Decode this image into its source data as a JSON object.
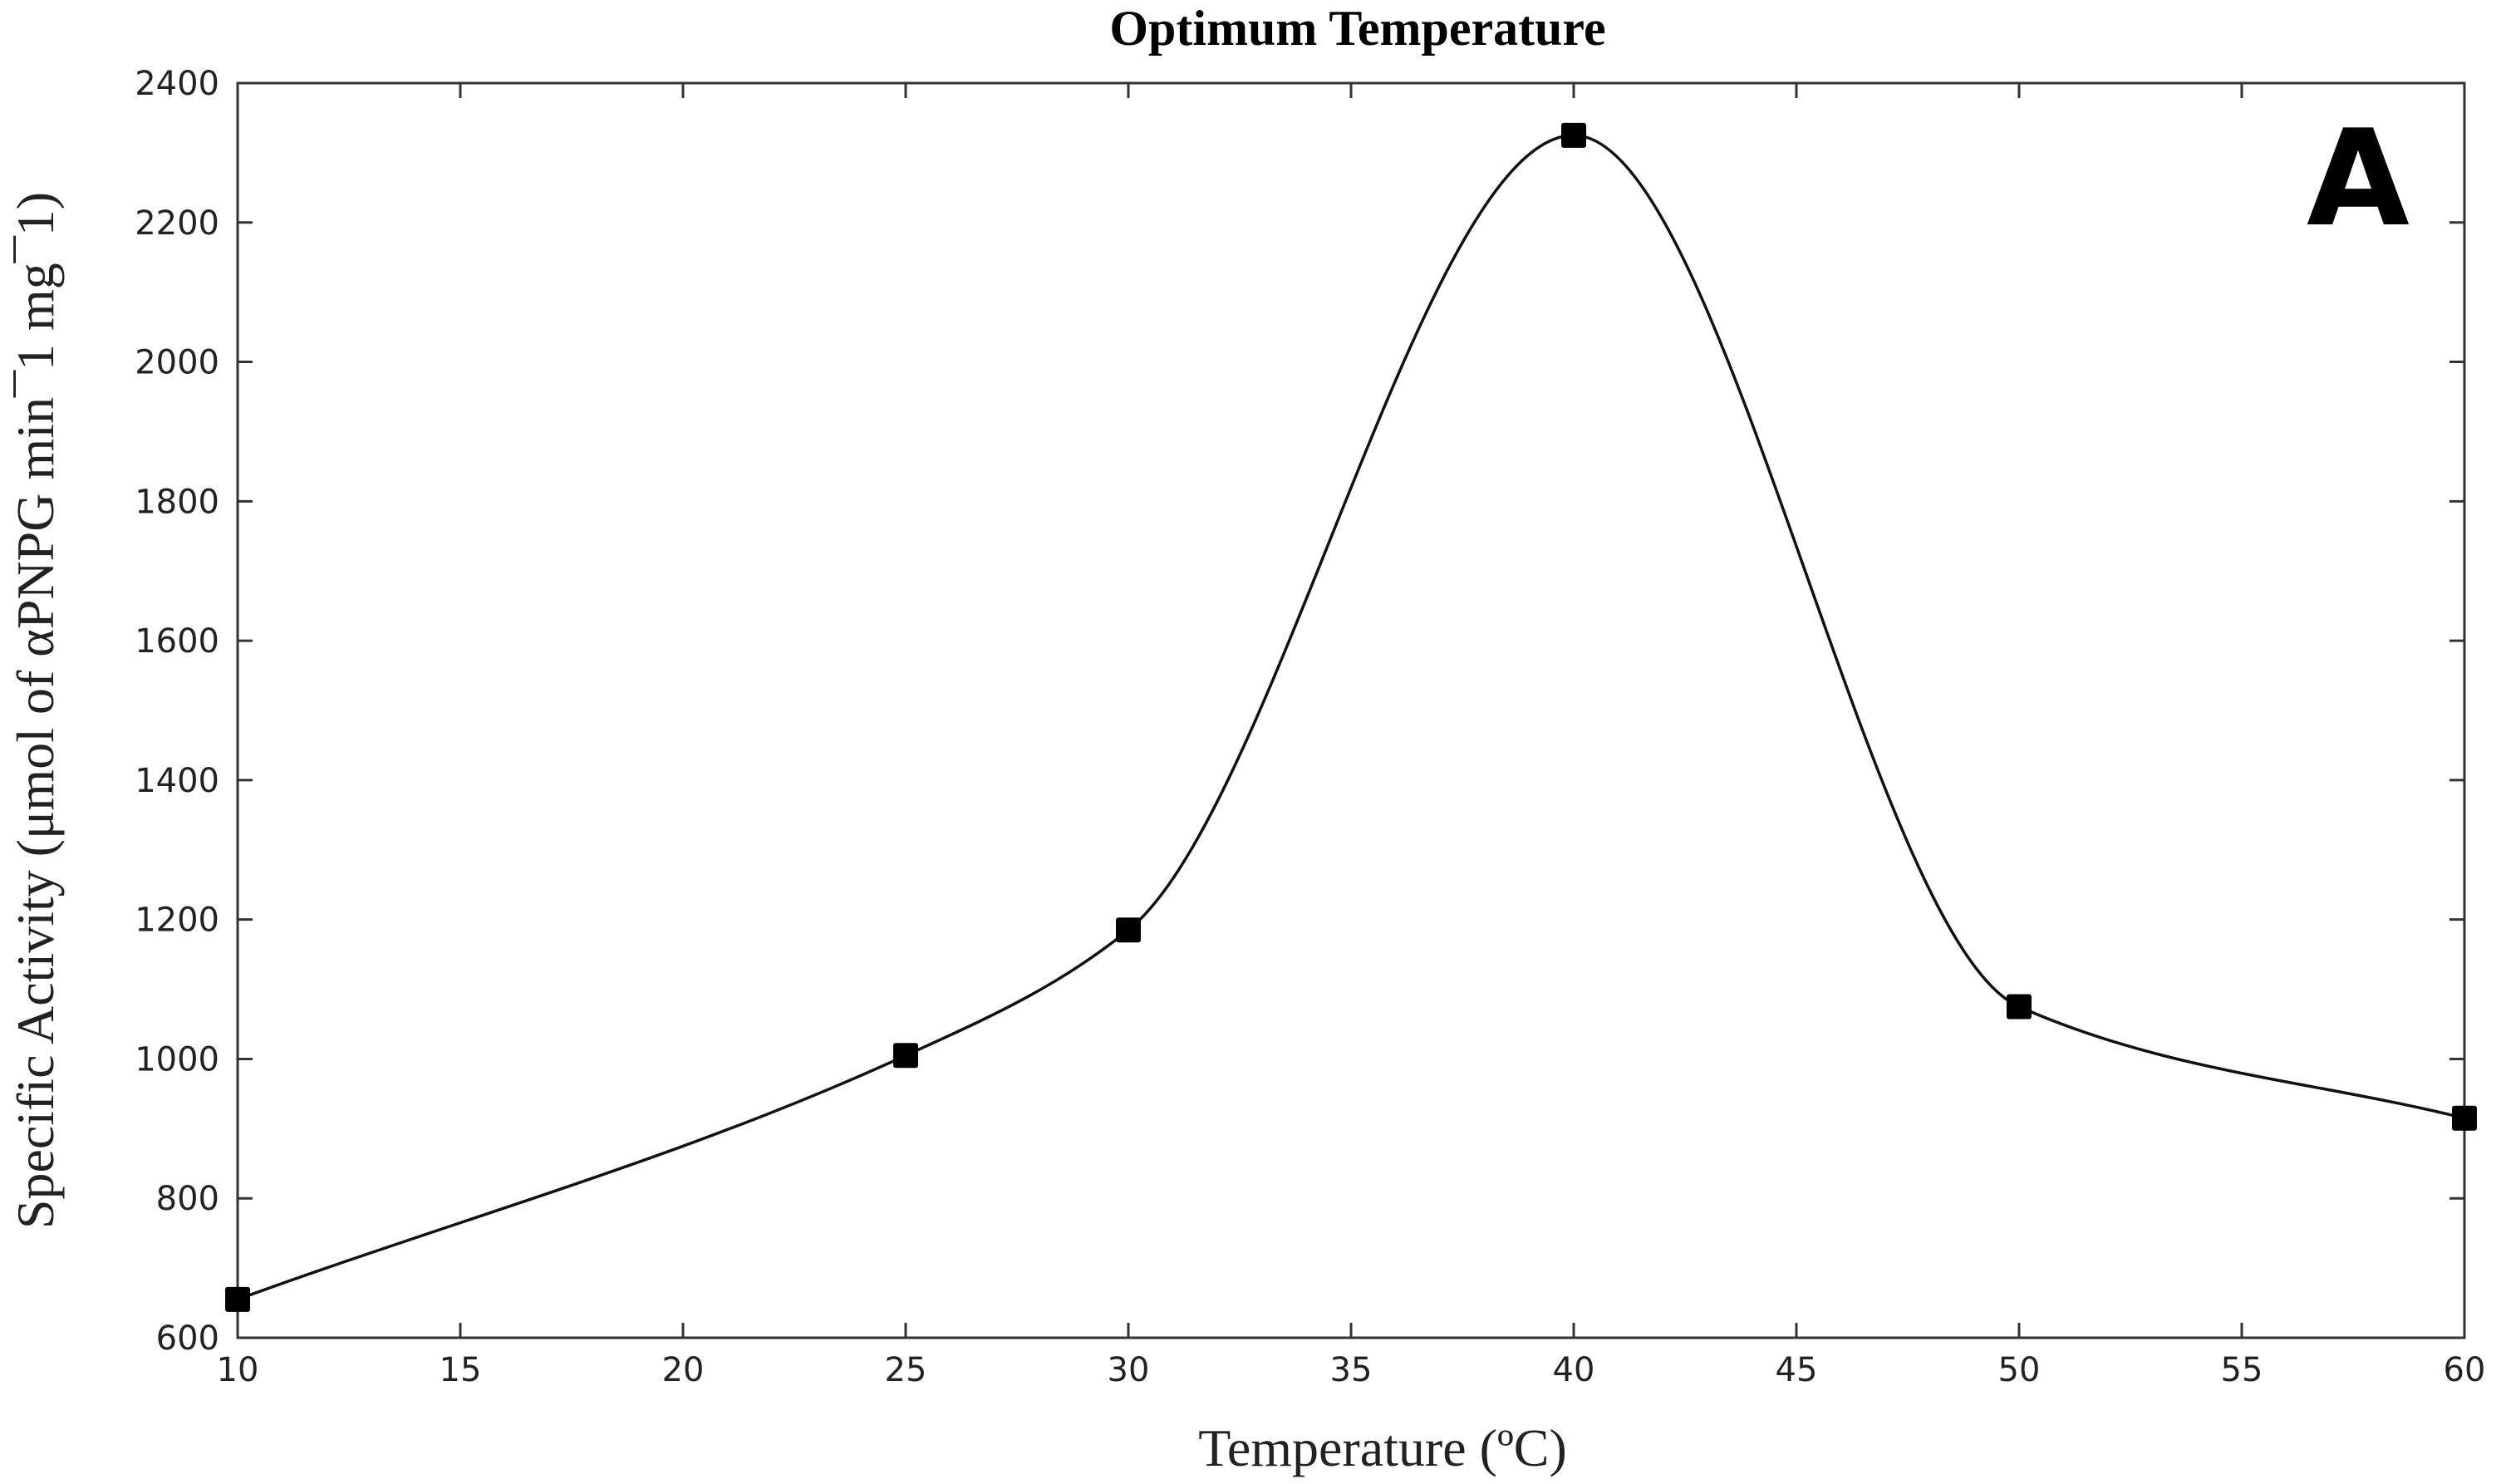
{
  "chart_data": {
    "type": "line",
    "title": "Optimum Temperature",
    "xlabel": "Temperature (ºC)",
    "ylabel": "Specific Activity (μmol of αPNPG min¯1 mg¯1)",
    "panel_label": "A",
    "xlim": [
      10,
      60
    ],
    "ylim": [
      600,
      2400
    ],
    "xticks": [
      10,
      15,
      20,
      25,
      30,
      35,
      40,
      45,
      50,
      55,
      60
    ],
    "yticks": [
      600,
      800,
      1000,
      1200,
      1400,
      1600,
      1800,
      2000,
      2200,
      2400
    ],
    "grid": false,
    "series": [
      {
        "x": [
          10,
          25,
          30,
          40,
          50,
          60
        ],
        "y": [
          655,
          1005,
          1185,
          2325,
          1075,
          915
        ],
        "marker": "square",
        "line": "smooth",
        "color": "#000000"
      }
    ]
  }
}
